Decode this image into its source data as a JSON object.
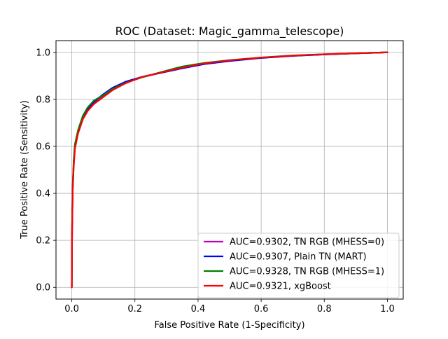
{
  "chart_data": {
    "type": "line",
    "title": "ROC (Dataset: Magic_gamma_telescope)",
    "xlabel": "False Positive Rate (1-Specificity)",
    "ylabel": "True Positive Rate (Sensitivity)",
    "xlim": [
      -0.05,
      1.05
    ],
    "ylim": [
      -0.05,
      1.05
    ],
    "xticks": [
      "0.0",
      "0.2",
      "0.4",
      "0.6",
      "0.8",
      "1.0"
    ],
    "yticks": [
      "0.0",
      "0.2",
      "0.4",
      "0.6",
      "0.8",
      "1.0"
    ],
    "grid": true,
    "legend_position": "bottom-right",
    "series": [
      {
        "name": "AUC=0.9302, TN RGB (MHESS=0)",
        "color": "#bf00bf",
        "points": [
          [
            0,
            0
          ],
          [
            0.001,
            0.25
          ],
          [
            0.003,
            0.42
          ],
          [
            0.006,
            0.52
          ],
          [
            0.01,
            0.6
          ],
          [
            0.02,
            0.66
          ],
          [
            0.035,
            0.72
          ],
          [
            0.05,
            0.755
          ],
          [
            0.07,
            0.785
          ],
          [
            0.1,
            0.815
          ],
          [
            0.13,
            0.845
          ],
          [
            0.17,
            0.87
          ],
          [
            0.22,
            0.893
          ],
          [
            0.28,
            0.913
          ],
          [
            0.35,
            0.935
          ],
          [
            0.42,
            0.952
          ],
          [
            0.5,
            0.965
          ],
          [
            0.6,
            0.977
          ],
          [
            0.7,
            0.985
          ],
          [
            0.8,
            0.991
          ],
          [
            0.9,
            0.996
          ],
          [
            1.0,
            1.0
          ]
        ]
      },
      {
        "name": "AUC=0.9307, Plain TN (MART)",
        "color": "#0000ff",
        "points": [
          [
            0,
            0
          ],
          [
            0.001,
            0.26
          ],
          [
            0.003,
            0.43
          ],
          [
            0.006,
            0.53
          ],
          [
            0.01,
            0.6
          ],
          [
            0.02,
            0.665
          ],
          [
            0.035,
            0.725
          ],
          [
            0.05,
            0.76
          ],
          [
            0.07,
            0.79
          ],
          [
            0.1,
            0.822
          ],
          [
            0.13,
            0.85
          ],
          [
            0.17,
            0.875
          ],
          [
            0.22,
            0.895
          ],
          [
            0.28,
            0.912
          ],
          [
            0.35,
            0.932
          ],
          [
            0.42,
            0.95
          ],
          [
            0.5,
            0.963
          ],
          [
            0.6,
            0.976
          ],
          [
            0.7,
            0.985
          ],
          [
            0.8,
            0.991
          ],
          [
            0.9,
            0.996
          ],
          [
            1.0,
            1.0
          ]
        ]
      },
      {
        "name": "AUC=0.9328, TN RGB (MHESS=1)",
        "color": "#008000",
        "points": [
          [
            0,
            0
          ],
          [
            0.001,
            0.27
          ],
          [
            0.003,
            0.44
          ],
          [
            0.006,
            0.54
          ],
          [
            0.01,
            0.61
          ],
          [
            0.02,
            0.67
          ],
          [
            0.035,
            0.73
          ],
          [
            0.05,
            0.765
          ],
          [
            0.07,
            0.795
          ],
          [
            0.1,
            0.818
          ],
          [
            0.13,
            0.845
          ],
          [
            0.17,
            0.87
          ],
          [
            0.22,
            0.893
          ],
          [
            0.28,
            0.915
          ],
          [
            0.35,
            0.94
          ],
          [
            0.42,
            0.955
          ],
          [
            0.5,
            0.967
          ],
          [
            0.6,
            0.978
          ],
          [
            0.7,
            0.987
          ],
          [
            0.8,
            0.992
          ],
          [
            0.9,
            0.996
          ],
          [
            1.0,
            1.0
          ]
        ]
      },
      {
        "name": "AUC=0.9321, xgBoost",
        "color": "#ff0000",
        "points": [
          [
            0,
            0
          ],
          [
            0.001,
            0.24
          ],
          [
            0.003,
            0.41
          ],
          [
            0.006,
            0.51
          ],
          [
            0.01,
            0.59
          ],
          [
            0.02,
            0.655
          ],
          [
            0.035,
            0.715
          ],
          [
            0.05,
            0.75
          ],
          [
            0.07,
            0.78
          ],
          [
            0.1,
            0.81
          ],
          [
            0.13,
            0.84
          ],
          [
            0.17,
            0.868
          ],
          [
            0.22,
            0.895
          ],
          [
            0.28,
            0.913
          ],
          [
            0.35,
            0.935
          ],
          [
            0.42,
            0.953
          ],
          [
            0.5,
            0.966
          ],
          [
            0.6,
            0.978
          ],
          [
            0.7,
            0.986
          ],
          [
            0.8,
            0.992
          ],
          [
            0.9,
            0.996
          ],
          [
            1.0,
            1.0
          ]
        ]
      }
    ]
  }
}
